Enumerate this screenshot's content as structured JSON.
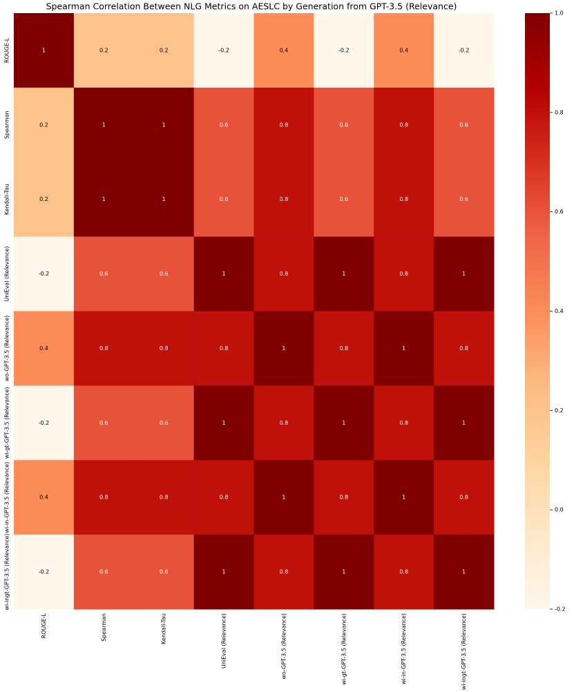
{
  "chart_data": {
    "type": "heatmap",
    "title": "Spearman Correlation Between NLG Metrics on AESLC by Generation from GPT-3.5 (Relevance)",
    "x_categories": [
      "ROUGE-L",
      "Spearman",
      "Kendall-Tau",
      "UniEval (Relevance)",
      "wo-GPT-3.5 (Relevance)",
      "wi-gt-GPT-3.5 (Relevance)",
      "wi-in-GPT-3.5 (Relevance)",
      "wi-ingt-GPT-3.5 (Relevance)"
    ],
    "y_categories": [
      "ROUGE-L",
      "Spearman",
      "Kendall-Tau",
      "UniEval (Relevance)",
      "wo-GPT-3.5 (Relevance)",
      "wi-gt-GPT-3.5 (Relevance)",
      "wi-in-GPT-3.5 (Relevance)",
      "wi-ingt-GPT-3.5 (Relevance)"
    ],
    "values": [
      [
        1,
        0.2,
        0.2,
        -0.2,
        0.4,
        -0.2,
        0.4,
        -0.2
      ],
      [
        0.2,
        1,
        1,
        0.6,
        0.8,
        0.6,
        0.8,
        0.6
      ],
      [
        0.2,
        1,
        1,
        0.6,
        0.8,
        0.6,
        0.8,
        0.6
      ],
      [
        -0.2,
        0.6,
        0.6,
        1,
        0.8,
        1,
        0.8,
        1
      ],
      [
        0.4,
        0.8,
        0.8,
        0.8,
        1,
        0.8,
        1,
        0.8
      ],
      [
        -0.2,
        0.6,
        0.6,
        1,
        0.8,
        1,
        0.8,
        1
      ],
      [
        0.4,
        0.8,
        0.8,
        0.8,
        1,
        0.8,
        1,
        0.8
      ],
      [
        -0.2,
        0.6,
        0.6,
        1,
        0.8,
        1,
        0.8,
        1
      ]
    ],
    "colormap": [
      "#fff7ec",
      "#fee8c8",
      "#fdd49e",
      "#fdbb84",
      "#fc8d59",
      "#ef6548",
      "#d7301f",
      "#b30000",
      "#7f0000"
    ],
    "zlim": [
      -0.2,
      1
    ],
    "zticks": [
      -0.2,
      {
        "value": 0,
        "label": "0.0"
      },
      0.2,
      0.4,
      0.6,
      0.8,
      {
        "value": 1,
        "label": "1.0"
      }
    ]
  }
}
